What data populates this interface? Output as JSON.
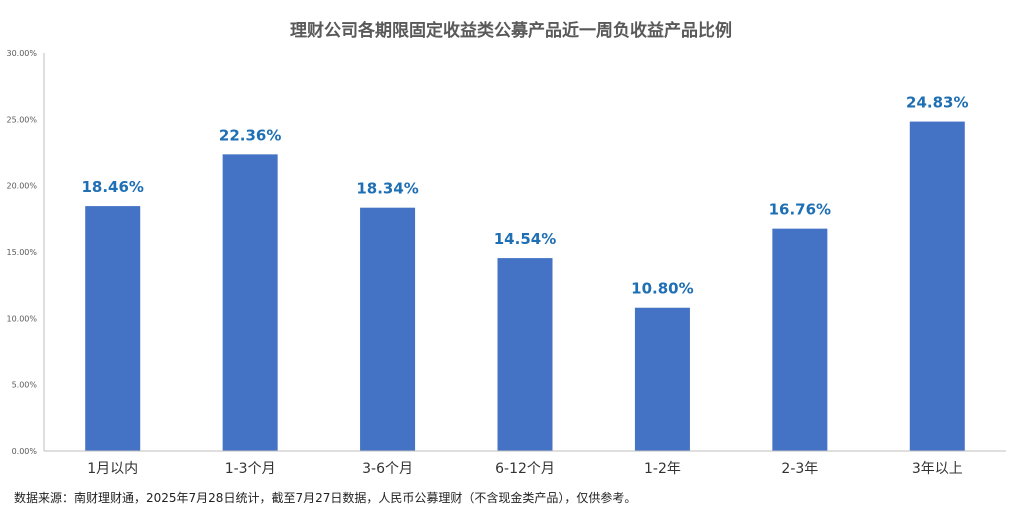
{
  "chart_data": {
    "type": "bar",
    "title": "理财公司各期限固定收益类公募产品近一周负收益产品比例",
    "categories": [
      "1月以内",
      "1-3个月",
      "3-6个月",
      "6-12个月",
      "1-2年",
      "2-3年",
      "3年以上"
    ],
    "values": [
      18.46,
      22.36,
      18.34,
      14.54,
      10.8,
      16.76,
      24.83
    ],
    "value_labels": [
      "18.46%",
      "22.36%",
      "18.34%",
      "14.54%",
      "10.80%",
      "16.76%",
      "24.83%"
    ],
    "ylim": [
      0,
      30
    ],
    "yticks": [
      0,
      5,
      10,
      15,
      20,
      25,
      30
    ],
    "ytick_labels": [
      "0.00%",
      "5.00%",
      "10.00%",
      "15.00%",
      "20.00%",
      "25.00%",
      "30.00%"
    ],
    "xlabel": "",
    "ylabel": "",
    "grid": false,
    "colors": {
      "bar": "#4472C4",
      "label": "#1F6FB4",
      "axis": "#BFBFBF",
      "tick": "#595959"
    }
  },
  "source": "数据来源：南财理财通，2025年7月28日统计，截至7月27日数据，人民币公募理财（不含现金类产品），仅供参考。"
}
